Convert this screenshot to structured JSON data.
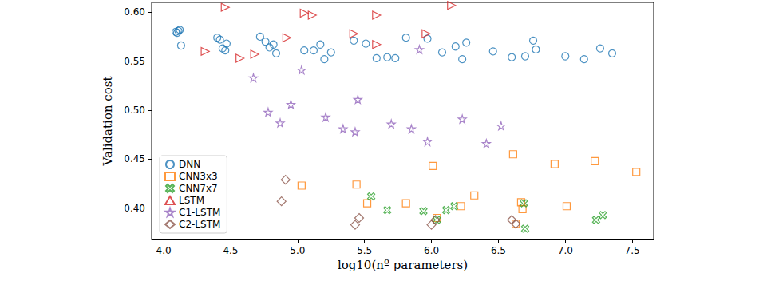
{
  "chart_data": {
    "type": "scatter",
    "x_label": "log10(nº parameters)",
    "y_label": "Validation cost",
    "xlim": [
      3.91,
      7.66
    ],
    "ylim": [
      0.368,
      0.61
    ],
    "xticks": [
      {
        "value": 4,
        "label": "4.0"
      },
      {
        "value": 4.5,
        "label": "4.5"
      },
      {
        "value": 5,
        "label": "5.0"
      },
      {
        "value": 5.5,
        "label": "5.5"
      },
      {
        "value": 6,
        "label": "6.0"
      },
      {
        "value": 6.5,
        "label": "6.5"
      },
      {
        "value": 7,
        "label": "7.0"
      },
      {
        "value": 7.5,
        "label": "7.5"
      }
    ],
    "yticks": [
      {
        "value": 0.4,
        "label": "0.40"
      },
      {
        "value": 0.45,
        "label": "0.45"
      },
      {
        "value": 0.5,
        "label": "0.50"
      },
      {
        "value": 0.55,
        "label": "0.55"
      },
      {
        "value": 0.6,
        "label": "0.60"
      }
    ],
    "grid": false,
    "legend": "lower left",
    "series": [
      {
        "name": "DNN",
        "color": "#1f77b4",
        "marker": "circle",
        "x": [
          4.09,
          4.1,
          4.11,
          4.12,
          4.13,
          4.4,
          4.42,
          4.44,
          4.46,
          4.47,
          4.72,
          4.76,
          4.79,
          4.82,
          4.84,
          5.05,
          5.12,
          5.17,
          5.2,
          5.25,
          5.42,
          5.51,
          5.59,
          5.67,
          5.73,
          5.81,
          5.97,
          6.08,
          6.18,
          6.23,
          6.26,
          6.46,
          6.6,
          6.7,
          6.76,
          6.78,
          7.0,
          7.14,
          7.26,
          7.35
        ],
        "values": [
          0.58,
          0.579,
          0.581,
          0.582,
          0.566,
          0.574,
          0.572,
          0.563,
          0.561,
          0.568,
          0.575,
          0.57,
          0.564,
          0.567,
          0.558,
          0.561,
          0.561,
          0.567,
          0.552,
          0.559,
          0.571,
          0.568,
          0.553,
          0.554,
          0.553,
          0.574,
          0.573,
          0.559,
          0.565,
          0.552,
          0.569,
          0.56,
          0.554,
          0.555,
          0.571,
          0.562,
          0.555,
          0.552,
          0.563,
          0.558
        ]
      },
      {
        "name": "CNN3x3",
        "color": "#ff7f0e",
        "marker": "square",
        "x": [
          5.03,
          5.44,
          5.52,
          5.81,
          6.01,
          6.04,
          6.22,
          6.32,
          6.61,
          6.63,
          6.67,
          6.68,
          6.92,
          7.01,
          7.22,
          7.53
        ],
        "values": [
          0.423,
          0.424,
          0.405,
          0.405,
          0.443,
          0.39,
          0.402,
          0.413,
          0.455,
          0.384,
          0.406,
          0.399,
          0.445,
          0.402,
          0.448,
          0.437
        ]
      },
      {
        "name": "CNN7x7",
        "color": "#2ca02c",
        "marker": "x",
        "x": [
          5.55,
          5.67,
          5.94,
          6.04,
          6.11,
          6.17,
          6.69,
          6.7,
          7.23,
          7.28
        ],
        "values": [
          0.412,
          0.398,
          0.397,
          0.388,
          0.398,
          0.402,
          0.405,
          0.379,
          0.388,
          0.393
        ]
      },
      {
        "name": "LSTM",
        "color": "#d62728",
        "marker": "triangle_right",
        "x": [
          4.31,
          4.46,
          4.57,
          4.68,
          4.92,
          5.05,
          5.11,
          5.42,
          5.59,
          5.59,
          5.96,
          6.15
        ],
        "values": [
          0.56,
          0.605,
          0.553,
          0.557,
          0.574,
          0.599,
          0.597,
          0.578,
          0.597,
          0.567,
          0.578,
          0.607
        ]
      },
      {
        "name": "C1-LSTM",
        "color": "#9467bd",
        "marker": "star",
        "x": [
          4.67,
          4.78,
          4.87,
          4.95,
          5.03,
          5.21,
          5.34,
          5.43,
          5.45,
          5.7,
          5.85,
          5.91,
          5.97,
          6.23,
          6.41,
          6.52
        ],
        "values": [
          0.533,
          0.498,
          0.487,
          0.506,
          0.541,
          0.493,
          0.481,
          0.478,
          0.511,
          0.486,
          0.481,
          0.562,
          0.468,
          0.491,
          0.466,
          0.484
        ]
      },
      {
        "name": "C2-LSTM",
        "color": "#8c564b",
        "marker": "diamond",
        "x": [
          4.88,
          4.91,
          5.43,
          5.46,
          6.0,
          6.03,
          6.6,
          6.63
        ],
        "values": [
          0.407,
          0.429,
          0.383,
          0.39,
          0.383,
          0.388,
          0.388,
          0.384
        ]
      }
    ]
  }
}
